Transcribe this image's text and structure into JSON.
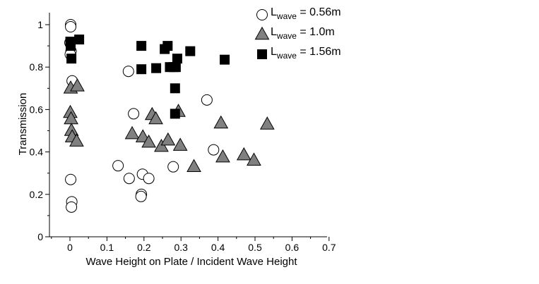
{
  "chart_data": {
    "type": "scatter",
    "xlabel": "Wave Height on Plate / Incident Wave Height",
    "ylabel": "Transmission",
    "xlim": [
      -0.05,
      0.7
    ],
    "ylim": [
      0,
      1.05
    ],
    "xticks": [
      "0",
      "0.1",
      "0.2",
      "0.3",
      "0.4",
      "0.5",
      "0.6",
      "0.7"
    ],
    "yticks": [
      "0",
      "0.2",
      "0.4",
      "0.6",
      "0.8",
      "1"
    ],
    "grid": false,
    "legend_position": "top-right",
    "series": [
      {
        "legend_main": "L",
        "legend_sub": "wave",
        "legend_value": " = 0.56m",
        "marker": "circle",
        "fill": "#ffffff",
        "points": [
          [
            0.002,
            1.0
          ],
          [
            0.002,
            0.99
          ],
          [
            0.0,
            0.915
          ],
          [
            0.003,
            0.875
          ],
          [
            0.001,
            0.86
          ],
          [
            0.006,
            0.735
          ],
          [
            0.158,
            0.78
          ],
          [
            0.172,
            0.58
          ],
          [
            0.37,
            0.645
          ],
          [
            0.388,
            0.41
          ],
          [
            0.002,
            0.27
          ],
          [
            0.005,
            0.165
          ],
          [
            0.004,
            0.14
          ],
          [
            0.13,
            0.335
          ],
          [
            0.16,
            0.275
          ],
          [
            0.196,
            0.295
          ],
          [
            0.213,
            0.275
          ],
          [
            0.279,
            0.33
          ],
          [
            0.193,
            0.2
          ],
          [
            0.192,
            0.19
          ]
        ]
      },
      {
        "legend_main": "L",
        "legend_sub": "wave",
        "legend_value": " = 1.0m",
        "marker": "triangle",
        "fill": "#808080",
        "points": [
          [
            0.002,
            0.7
          ],
          [
            0.02,
            0.71
          ],
          [
            0.001,
            0.585
          ],
          [
            0.003,
            0.555
          ],
          [
            0.004,
            0.5
          ],
          [
            0.006,
            0.47
          ],
          [
            0.018,
            0.45
          ],
          [
            0.168,
            0.485
          ],
          [
            0.197,
            0.47
          ],
          [
            0.213,
            0.445
          ],
          [
            0.222,
            0.575
          ],
          [
            0.232,
            0.555
          ],
          [
            0.247,
            0.425
          ],
          [
            0.265,
            0.455
          ],
          [
            0.298,
            0.43
          ],
          [
            0.293,
            0.59
          ],
          [
            0.335,
            0.33
          ],
          [
            0.408,
            0.535
          ],
          [
            0.413,
            0.375
          ],
          [
            0.47,
            0.385
          ],
          [
            0.497,
            0.36
          ],
          [
            0.533,
            0.53
          ]
        ]
      },
      {
        "legend_main": "L",
        "legend_sub": "wave",
        "legend_value": " = 1.56m",
        "marker": "square",
        "fill": "#000000",
        "points": [
          [
            0.001,
            0.92
          ],
          [
            0.025,
            0.93
          ],
          [
            0.002,
            0.9
          ],
          [
            0.004,
            0.84
          ],
          [
            0.193,
            0.9
          ],
          [
            0.193,
            0.79
          ],
          [
            0.233,
            0.795
          ],
          [
            0.256,
            0.885
          ],
          [
            0.264,
            0.9
          ],
          [
            0.27,
            0.8
          ],
          [
            0.28,
            0.8
          ],
          [
            0.286,
            0.8
          ],
          [
            0.29,
            0.84
          ],
          [
            0.325,
            0.875
          ],
          [
            0.418,
            0.835
          ],
          [
            0.284,
            0.7
          ],
          [
            0.284,
            0.58
          ]
        ]
      }
    ]
  }
}
